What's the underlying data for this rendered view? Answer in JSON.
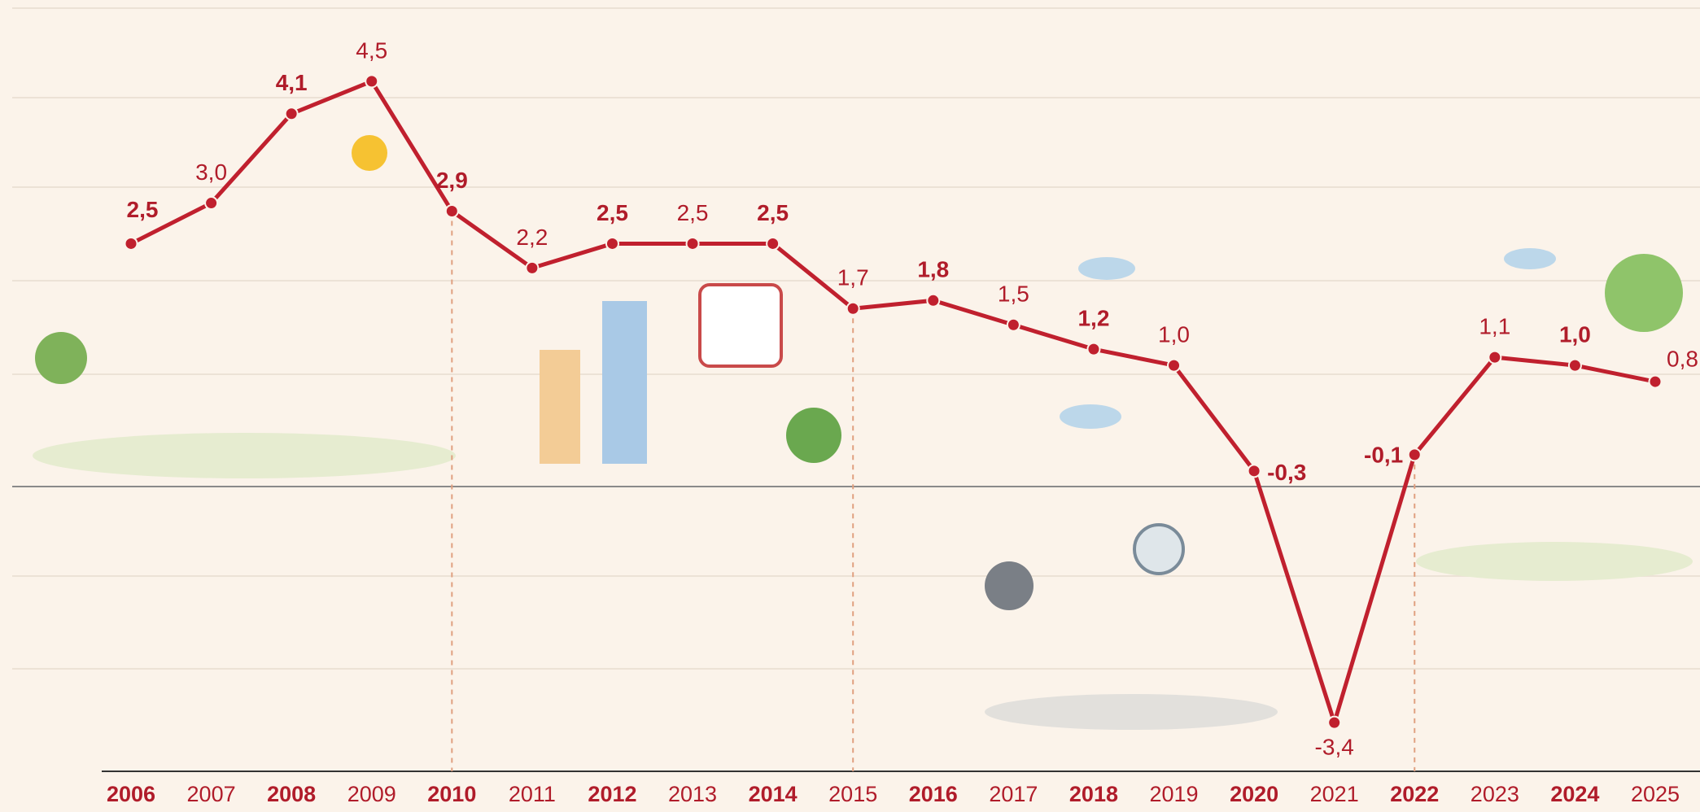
{
  "chart_data": {
    "type": "line",
    "categories": [
      "2006",
      "2007",
      "2008",
      "2009",
      "2010",
      "2011",
      "2012",
      "2013",
      "2014",
      "2015",
      "2016",
      "2017",
      "2018",
      "2019",
      "2020",
      "2021",
      "2022",
      "2023",
      "2024",
      "2025"
    ],
    "series": [
      {
        "color": "#c0202e",
        "values": [
          2.5,
          3.0,
          4.1,
          4.5,
          2.9,
          2.2,
          2.5,
          2.5,
          2.5,
          1.7,
          1.8,
          1.5,
          1.2,
          1.0,
          -0.3,
          -3.4,
          -0.1,
          1.1,
          1.0,
          0.8
        ],
        "value_labels": [
          "2,5",
          "3,0",
          "4,1",
          "4,5",
          "2,9",
          "2,2",
          "2,5",
          "2,5",
          "2,5",
          "1,7",
          "1,8",
          "1,5",
          "1,2",
          "1,0",
          "-0,3",
          "-3,4",
          "-0,1",
          "1,1",
          "1,0",
          "0,8"
        ]
      }
    ],
    "ylim": [
      -4,
      5
    ]
  }
}
